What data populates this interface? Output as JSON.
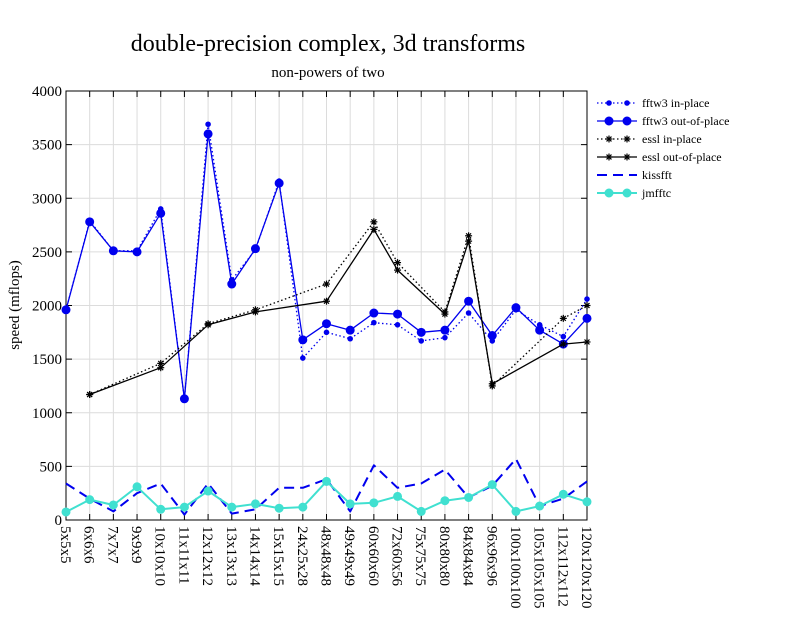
{
  "chart_data": {
    "type": "line",
    "title": "double-precision complex, 3d transforms",
    "subtitle": "non-powers of two",
    "xlabel": "",
    "ylabel": "speed (mflops)",
    "ylim": [
      0,
      4000
    ],
    "yticks": [
      0,
      500,
      1000,
      1500,
      2000,
      2500,
      3000,
      3500,
      4000
    ],
    "grid": true,
    "legend_position": "top-right",
    "categories": [
      "5x5x5",
      "6x6x6",
      "7x7x7",
      "9x9x9",
      "10x10x10",
      "11x11x11",
      "12x12x12",
      "13x13x13",
      "14x14x14",
      "15x15x15",
      "24x25x28",
      "48x48x48",
      "49x49x49",
      "60x60x60",
      "72x60x56",
      "75x75x75",
      "80x80x80",
      "84x84x84",
      "96x96x96",
      "100x100x100",
      "105x105x105",
      "112x112x112",
      "120x120x120"
    ],
    "series": [
      {
        "name": "fftw3 in-place",
        "color": "#0000ee",
        "dash": "dotted",
        "marker": "small-dot",
        "values": [
          1960,
          2790,
          2510,
          2510,
          2900,
          1130,
          3690,
          2240,
          2520,
          3160,
          1510,
          1750,
          1690,
          1840,
          1820,
          1670,
          1700,
          1930,
          1670,
          1960,
          1820,
          1710,
          2060
        ]
      },
      {
        "name": "fftw3 out-of-place",
        "color": "#0000ee",
        "dash": "solid",
        "marker": "dot",
        "values": [
          1960,
          2780,
          2510,
          2500,
          2860,
          1130,
          3600,
          2200,
          2530,
          3140,
          1680,
          1830,
          1770,
          1930,
          1920,
          1750,
          1770,
          2040,
          1720,
          1980,
          1770,
          1640,
          1880
        ]
      },
      {
        "name": "essl in-place",
        "color": "#000000",
        "dash": "dotted",
        "marker": "star",
        "values": [
          null,
          1170,
          null,
          null,
          1460,
          null,
          1830,
          null,
          1960,
          null,
          null,
          2200,
          null,
          2780,
          2400,
          null,
          1940,
          2650,
          1250,
          null,
          null,
          1880,
          2000
        ]
      },
      {
        "name": "essl out-of-place",
        "color": "#000000",
        "dash": "solid",
        "marker": "star",
        "values": [
          null,
          1170,
          null,
          null,
          1420,
          null,
          1820,
          null,
          1940,
          null,
          null,
          2040,
          null,
          2710,
          2330,
          null,
          1920,
          2600,
          1270,
          null,
          null,
          1640,
          1660
        ]
      },
      {
        "name": "kissfft",
        "color": "#0000ee",
        "dash": "dashed",
        "marker": "none",
        "values": [
          340,
          200,
          80,
          250,
          340,
          50,
          340,
          60,
          100,
          300,
          300,
          380,
          80,
          510,
          300,
          340,
          470,
          210,
          320,
          570,
          130,
          200,
          360
        ]
      },
      {
        "name": "jmfftc",
        "color": "#40e0d0",
        "dash": "solid",
        "marker": "dot",
        "values": [
          75,
          190,
          140,
          310,
          100,
          120,
          270,
          120,
          150,
          110,
          120,
          360,
          150,
          160,
          220,
          80,
          180,
          210,
          330,
          80,
          130,
          240,
          170
        ]
      }
    ]
  }
}
